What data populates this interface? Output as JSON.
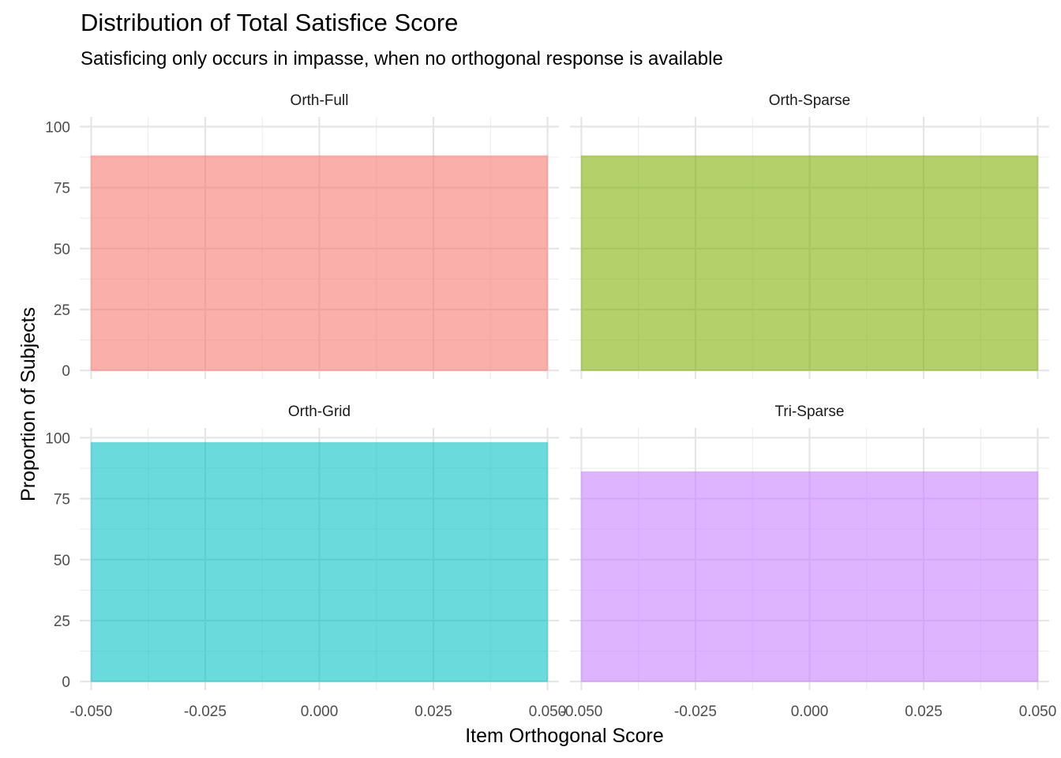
{
  "chart_data": {
    "type": "bar",
    "title": "Distribution of Total Satisfice Score",
    "subtitle": "Satisficing only occurs in impasse, when no orthogonal response is available",
    "xlabel": "Item Orthogonal Score",
    "ylabel": "Proportion of Subjects",
    "xlim": [
      -0.05,
      0.05
    ],
    "ylim": [
      0,
      100
    ],
    "x_ticks": [
      "-0.050",
      "-0.025",
      "0.000",
      "0.025",
      "0.050"
    ],
    "y_ticks": [
      "0",
      "25",
      "50",
      "75",
      "100"
    ],
    "grid": true,
    "legend": "none",
    "facets": [
      {
        "label": "Orth-Full",
        "x": 0,
        "value": 88,
        "color": "#F8766D"
      },
      {
        "label": "Orth-Sparse",
        "x": 0,
        "value": 88,
        "color": "#7CAE00"
      },
      {
        "label": "Orth-Grid",
        "x": 0,
        "value": 98,
        "color": "#00BFC4"
      },
      {
        "label": "Tri-Sparse",
        "x": 0,
        "value": 86,
        "color": "#C77CFF"
      }
    ]
  }
}
